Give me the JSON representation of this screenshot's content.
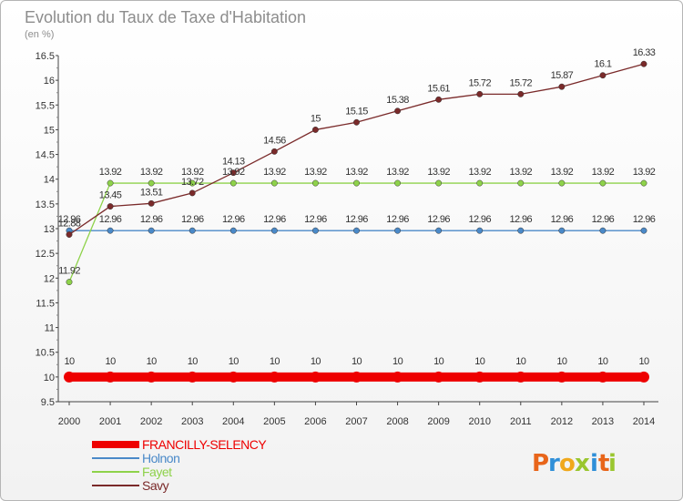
{
  "chart_data": {
    "type": "line",
    "title": "Evolution du Taux de Taxe d'Habitation",
    "subtitle": "(en %)",
    "x": [
      "2000",
      "2001",
      "2002",
      "2003",
      "2004",
      "2005",
      "2006",
      "2007",
      "2008",
      "2009",
      "2010",
      "2011",
      "2012",
      "2013",
      "2014"
    ],
    "ylim": [
      9.5,
      16.5
    ],
    "yticks": [
      "9.5",
      "10",
      "10.5",
      "11",
      "11.5",
      "12",
      "12.5",
      "13",
      "13.5",
      "14",
      "14.5",
      "15",
      "15.5",
      "16",
      "16.5"
    ],
    "grid": false,
    "legend_position": "bottom-left",
    "series": [
      {
        "name": "FRANCILLY-SELENCY",
        "color": "#ee0000",
        "values": [
          10,
          10,
          10,
          10,
          10,
          10,
          10,
          10,
          10,
          10,
          10,
          10,
          10,
          10,
          10
        ],
        "labels": [
          "10",
          "10",
          "10",
          "10",
          "10",
          "10",
          "10",
          "10",
          "10",
          "10",
          "10",
          "10",
          "10",
          "10",
          "10"
        ]
      },
      {
        "name": "Holnon",
        "color": "#4a89c8",
        "values": [
          12.96,
          12.96,
          12.96,
          12.96,
          12.96,
          12.96,
          12.96,
          12.96,
          12.96,
          12.96,
          12.96,
          12.96,
          12.96,
          12.96,
          12.96
        ],
        "labels": [
          "12.96",
          "12.96",
          "12.96",
          "12.96",
          "12.96",
          "12.96",
          "12.96",
          "12.96",
          "12.96",
          "12.96",
          "12.96",
          "12.96",
          "12.96",
          "12.96",
          "12.96"
        ]
      },
      {
        "name": "Fayet",
        "color": "#8ed24a",
        "values": [
          11.92,
          13.92,
          13.92,
          13.92,
          13.92,
          13.92,
          13.92,
          13.92,
          13.92,
          13.92,
          13.92,
          13.92,
          13.92,
          13.92,
          13.92
        ],
        "labels": [
          "11.92",
          "13.92",
          "13.92",
          "13.92",
          "13.92",
          "13.92",
          "13.92",
          "13.92",
          "13.92",
          "13.92",
          "13.92",
          "13.92",
          "13.92",
          "13.92",
          "13.92"
        ]
      },
      {
        "name": "Savy",
        "color": "#7a2a2a",
        "values": [
          12.88,
          13.45,
          13.51,
          13.72,
          14.13,
          14.56,
          15,
          15.15,
          15.38,
          15.61,
          15.72,
          15.72,
          15.87,
          16.1,
          16.33
        ],
        "labels": [
          "12.88",
          "13.45",
          "13.51",
          "13.72",
          "14.13",
          "14.56",
          "15",
          "15.15",
          "15.38",
          "15.61",
          "15.72",
          "15.72",
          "15.87",
          "16.1",
          "16.33"
        ]
      }
    ]
  },
  "logo": {
    "text": "Proxiti",
    "letters": [
      {
        "char": "P",
        "color": "#e8651a"
      },
      {
        "char": "r",
        "color": "#2f8fd8"
      },
      {
        "char": "o",
        "color": "#f0a81c"
      },
      {
        "char": "x",
        "color": "#9ac62f"
      },
      {
        "char": "i",
        "color": "#2f8fd8"
      },
      {
        "char": "t",
        "color": "#e8651a"
      },
      {
        "char": "i",
        "color": "#9ac62f"
      }
    ]
  }
}
